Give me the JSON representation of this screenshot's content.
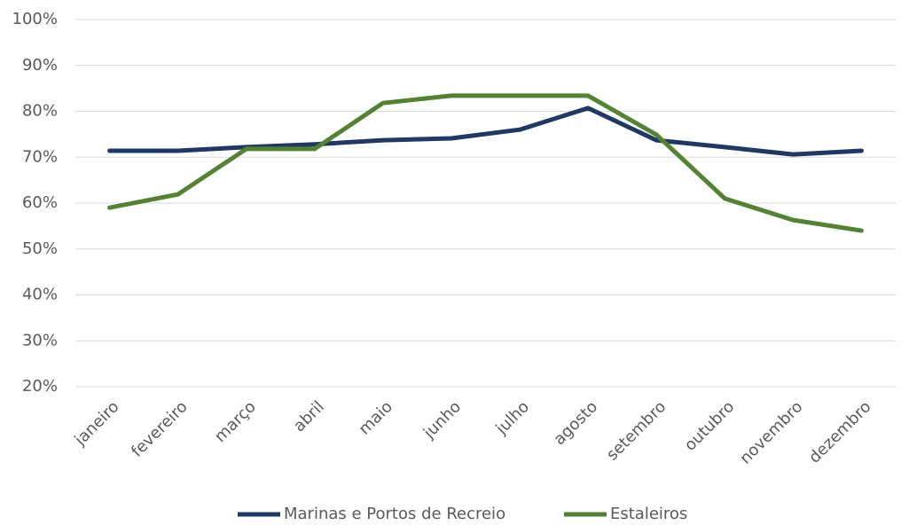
{
  "chart_data": {
    "type": "line",
    "categories": [
      "janeiro",
      "fevereiro",
      "março",
      "abril",
      "maio",
      "junho",
      "julho",
      "agosto",
      "setembro",
      "outubro",
      "novembro",
      "dezembro"
    ],
    "series": [
      {
        "name": "Marinas e Portos de Recreio",
        "color": "#203864",
        "values": [
          71.4,
          71.4,
          72.2,
          72.8,
          73.7,
          74.1,
          76.0,
          80.7,
          73.7,
          72.2,
          70.6,
          71.4
        ]
      },
      {
        "name": "Estaleiros",
        "color": "#548235",
        "values": [
          59.0,
          61.9,
          71.8,
          71.8,
          81.8,
          83.4,
          83.4,
          83.4,
          74.9,
          61.0,
          56.3,
          54.0
        ]
      }
    ],
    "ylim": [
      20,
      100
    ],
    "yticks": [
      {
        "value": 20,
        "label": "20%"
      },
      {
        "value": 30,
        "label": "30%"
      },
      {
        "value": 40,
        "label": "40%"
      },
      {
        "value": 50,
        "label": "50%"
      },
      {
        "value": 60,
        "label": "60%"
      },
      {
        "value": 70,
        "label": "70%"
      },
      {
        "value": 80,
        "label": "80%"
      },
      {
        "value": 90,
        "label": "90%"
      },
      {
        "value": 100,
        "label": "100%"
      }
    ],
    "grid": true,
    "legend": "bottom"
  }
}
